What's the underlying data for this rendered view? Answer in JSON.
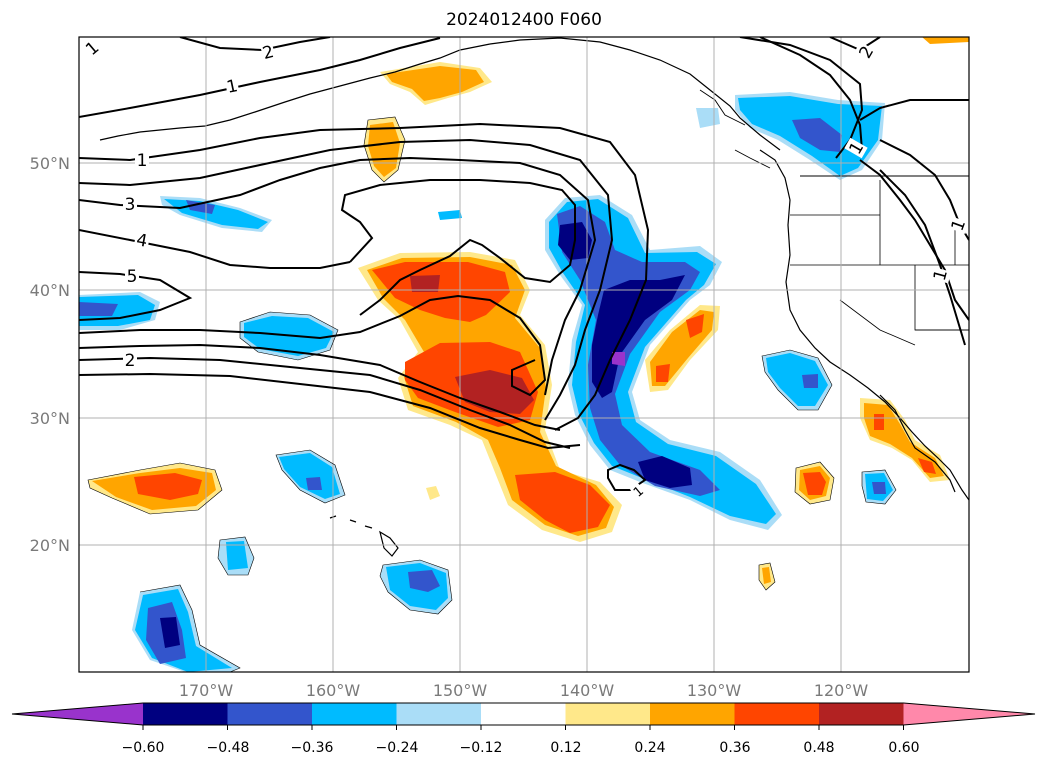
{
  "title": "2024012400 F060",
  "map": {
    "lat_labels": [
      "50°N",
      "40°N",
      "30°N",
      "20°N"
    ],
    "lon_labels": [
      "170°W",
      "160°W",
      "150°W",
      "140°W",
      "130°W",
      "120°W"
    ],
    "contour_labels": [
      "1",
      "2",
      "1",
      "1",
      "3",
      "4",
      "5",
      "2",
      "2",
      "1",
      "1",
      "1",
      "1"
    ],
    "contour_color": "#000000",
    "gridline_color": "#b0b0b0"
  },
  "colorbar": {
    "ticks": [
      "−0.60",
      "−0.48",
      "−0.36",
      "−0.24",
      "−0.12",
      "0.12",
      "0.24",
      "0.36",
      "0.48",
      "0.60"
    ],
    "colors": [
      "#9933cc",
      "#000080",
      "#3355cc",
      "#00bbff",
      "#aaddf7",
      "#ffffff",
      "#ffe88a",
      "#ffa500",
      "#ff4500",
      "#b22222",
      "#ff88aa"
    ]
  }
}
